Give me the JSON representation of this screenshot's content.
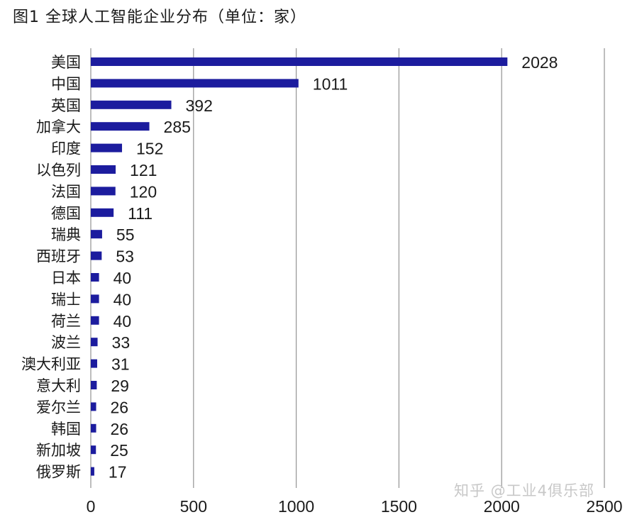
{
  "chart_data": {
    "type": "bar",
    "orientation": "horizontal",
    "title": "图1  全球人工智能企业分布（单位：家）",
    "categories": [
      "美国",
      "中国",
      "英国",
      "加拿大",
      "印度",
      "以色列",
      "法国",
      "德国",
      "瑞典",
      "西班牙",
      "日本",
      "瑞士",
      "荷兰",
      "波兰",
      "澳大利亚",
      "意大利",
      "爱尔兰",
      "韩国",
      "新加坡",
      "俄罗斯"
    ],
    "values": [
      2028,
      1011,
      392,
      285,
      152,
      121,
      120,
      111,
      55,
      53,
      40,
      40,
      40,
      33,
      31,
      29,
      26,
      26,
      25,
      17
    ],
    "xlim": [
      0,
      2500
    ],
    "xticks": [
      0,
      500,
      1000,
      1500,
      2000,
      2500
    ],
    "grid": true,
    "bar_color": "#1c1c9e",
    "data_labels": true
  },
  "watermark": "知乎 @工业4俱乐部"
}
